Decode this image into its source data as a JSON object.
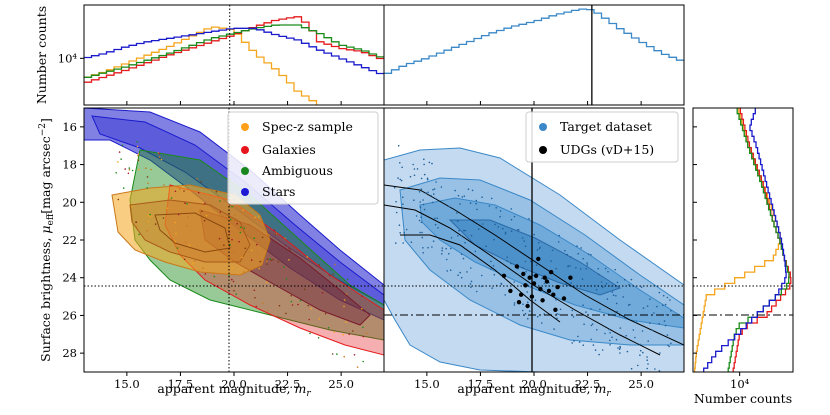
{
  "chart_data": {
    "type": "multi-panel contour + histogram",
    "xlabel": "apparent magnitude, m_r",
    "ylabel": "Surface brightness, μ_eff [mag arcsec⁻²]",
    "top_ylabel": "Number counts",
    "right_xlabel": "Number counts",
    "xlim": [
      13,
      27
    ],
    "ylim": [
      29,
      15
    ],
    "x_ticks": [
      15.0,
      17.5,
      20.0,
      22.5,
      25.0
    ],
    "x_tick_labels": [
      "15.0",
      "17.5",
      "20.0",
      "22.5",
      "25.0"
    ],
    "y_ticks": [
      16,
      18,
      20,
      22,
      24,
      26,
      28
    ],
    "y_tick_labels": [
      "16",
      "18",
      "20",
      "22",
      "24",
      "26",
      "28"
    ],
    "count_tick_value": 10000,
    "count_tick_label": "10⁴",
    "log_count_range": [
      3.72,
      4.32
    ],
    "cuts": {
      "mr_vertical_left": 19.8,
      "mr_vertical_right": 22.7,
      "mu_dotted": 24.5,
      "mu_dashdot": 26.0
    },
    "left_legend": [
      {
        "label": "Spec-z sample",
        "color": "#ff9f1a"
      },
      {
        "label": "Galaxies",
        "color": "#e8141c"
      },
      {
        "label": "Ambiguous",
        "color": "#17871e"
      },
      {
        "label": "Stars",
        "color": "#1d1ad6"
      }
    ],
    "right_legend": [
      {
        "label": "Target dataset",
        "color": "#3a88c8"
      },
      {
        "label": "UDGs (vD+15)",
        "color": "#000000"
      }
    ],
    "colors": {
      "spec": "#f5a51c",
      "galaxies": "#e41a1c",
      "ambiguous": "#1a8a1a",
      "stars": "#1a1acd",
      "target": "#3a88c8",
      "target_fill": "#a9cbe9"
    },
    "series_mag_hist": [
      {
        "name": "Spec-z sample",
        "mag": [
          13,
          14,
          15,
          16,
          17,
          18,
          19,
          20,
          20.5,
          21,
          21.5,
          22,
          22.5,
          23,
          24,
          25
        ],
        "log_counts": [
          3.88,
          3.92,
          3.97,
          4.02,
          4.07,
          4.13,
          4.19,
          4.17,
          4.1,
          4.03,
          3.98,
          3.93,
          3.87,
          3.8,
          3.72,
          3.68
        ]
      },
      {
        "name": "Galaxies",
        "mag": [
          13,
          15,
          17,
          19,
          20,
          21,
          22,
          23,
          23.5,
          24,
          25,
          26,
          27
        ],
        "log_counts": [
          3.85,
          3.93,
          4.02,
          4.1,
          4.14,
          4.19,
          4.23,
          4.25,
          4.2,
          4.1,
          4.06,
          4.04,
          3.99
        ]
      },
      {
        "name": "Ambiguous",
        "mag": [
          13,
          15,
          17,
          19,
          20,
          21,
          22,
          23,
          24,
          25,
          26,
          27
        ],
        "log_counts": [
          3.88,
          3.95,
          4.03,
          4.12,
          4.15,
          4.18,
          4.2,
          4.2,
          4.15,
          4.08,
          4.05,
          4.0
        ]
      },
      {
        "name": "Stars",
        "mag": [
          13,
          14,
          15,
          16,
          17,
          18,
          19,
          20,
          21,
          22,
          23,
          24,
          25,
          26,
          27
        ],
        "log_counts": [
          4.0,
          4.03,
          4.07,
          4.1,
          4.12,
          4.14,
          4.16,
          4.18,
          4.18,
          4.14,
          4.11,
          4.05,
          4.0,
          3.95,
          3.9
        ]
      },
      {
        "name": "Target dataset",
        "mag": [
          13,
          14,
          15,
          16,
          17,
          18,
          19,
          20,
          21,
          22,
          22.5,
          23,
          24,
          25,
          26,
          27
        ],
        "log_counts": [
          3.9,
          3.96,
          4.0,
          4.05,
          4.1,
          4.15,
          4.19,
          4.22,
          4.26,
          4.29,
          4.3,
          4.27,
          4.18,
          4.1,
          4.03,
          3.98
        ]
      }
    ],
    "series_mu_hist": [
      {
        "name": "Spec-z sample",
        "mu": [
          15,
          17,
          19,
          21,
          22,
          23,
          23.5,
          24,
          24.5,
          25,
          26,
          27,
          28,
          29
        ],
        "log_counts": [
          3.99,
          4.05,
          4.14,
          4.22,
          4.25,
          4.2,
          4.1,
          4.0,
          3.9,
          3.8,
          3.78,
          3.76,
          3.74,
          3.73
        ]
      },
      {
        "name": "Galaxies",
        "mu": [
          15,
          17,
          19,
          21,
          22,
          23,
          24,
          24.5,
          25,
          26,
          26.5,
          27,
          28,
          29
        ],
        "log_counts": [
          4.0,
          4.06,
          4.14,
          4.2,
          4.24,
          4.27,
          4.31,
          4.3,
          4.25,
          4.16,
          4.05,
          4.0,
          3.98,
          3.96
        ]
      },
      {
        "name": "Ambiguous",
        "mu": [
          15,
          17,
          19,
          21,
          22,
          23,
          24,
          24.5,
          25,
          26,
          26.5,
          27,
          28,
          29
        ],
        "log_counts": [
          3.98,
          4.05,
          4.13,
          4.2,
          4.24,
          4.27,
          4.3,
          4.28,
          4.22,
          4.1,
          4.0,
          3.97,
          3.95,
          3.93
        ]
      },
      {
        "name": "Stars",
        "mu": [
          15,
          16,
          17,
          19,
          21,
          22,
          23,
          24,
          25,
          26,
          27,
          28,
          29
        ],
        "log_counts": [
          4.1,
          4.06,
          4.1,
          4.16,
          4.22,
          4.25,
          4.27,
          4.28,
          4.22,
          4.1,
          3.99,
          3.86,
          3.78
        ]
      }
    ],
    "udg_points": [
      [
        19.2,
        23.4
      ],
      [
        19.5,
        23.8
      ],
      [
        19.8,
        24.0
      ],
      [
        20.0,
        24.3
      ],
      [
        20.3,
        24.6
      ],
      [
        19.6,
        24.4
      ],
      [
        20.6,
        24.2
      ],
      [
        20.9,
        24.9
      ],
      [
        19.9,
        25.0
      ],
      [
        20.4,
        25.2
      ],
      [
        21.1,
        24.5
      ],
      [
        18.9,
        24.7
      ],
      [
        19.3,
        25.3
      ],
      [
        20.8,
        23.7
      ],
      [
        20.1,
        23.9
      ],
      [
        21.4,
        25.1
      ],
      [
        19.7,
        25.5
      ],
      [
        20.5,
        24.0
      ],
      [
        18.6,
        23.9
      ],
      [
        21.7,
        24.0
      ],
      [
        20.2,
        23.0
      ],
      [
        21.0,
        25.7
      ],
      [
        19.4,
        24.9
      ],
      [
        20.7,
        24.7
      ]
    ]
  }
}
